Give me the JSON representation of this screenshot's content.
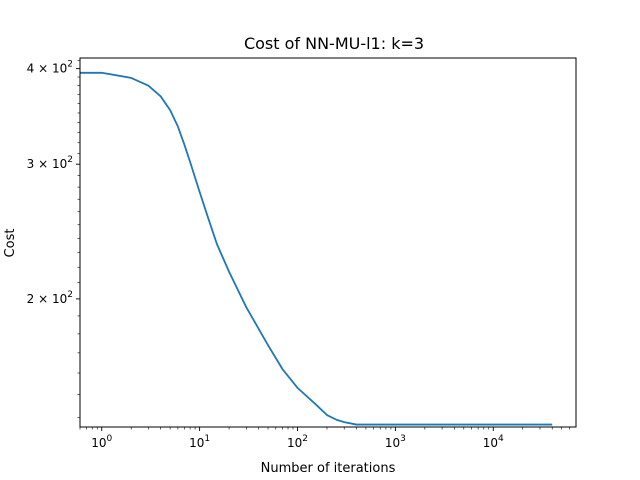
{
  "chart_data": {
    "type": "line",
    "title": "Cost of NN-MU-l1: k=3",
    "xlabel": "Number of iterations",
    "ylabel": "Cost",
    "xscale": "log",
    "yscale": "log",
    "xlim": [
      0.6,
      70000
    ],
    "ylim": [
      136,
      413
    ],
    "grid": false,
    "x_ticks": [
      {
        "value": 1,
        "base": "10",
        "exp": "0"
      },
      {
        "value": 10,
        "base": "10",
        "exp": "1"
      },
      {
        "value": 100,
        "base": "10",
        "exp": "2"
      },
      {
        "value": 1000,
        "base": "10",
        "exp": "3"
      },
      {
        "value": 10000,
        "base": "10",
        "exp": "4"
      }
    ],
    "y_ticks": [
      {
        "value": 200,
        "base": "2 × 10",
        "exp": "2"
      },
      {
        "value": 300,
        "base": "3 × 10",
        "exp": "2"
      },
      {
        "value": 400,
        "base": "4 × 10",
        "exp": "2"
      }
    ],
    "color": "#1f77b4",
    "series": [
      {
        "x": [
          0.6,
          1,
          2,
          3,
          4,
          5,
          6,
          7,
          8,
          10,
          12,
          15,
          20,
          30,
          50,
          70,
          100,
          150,
          200,
          250,
          300,
          400,
          500,
          700,
          1000,
          2000,
          5000,
          10000,
          20000,
          40000
        ],
        "y": [
          395,
          395,
          389,
          380,
          368,
          353,
          336,
          318,
          302,
          276,
          257,
          236,
          217,
          195,
          174,
          162,
          153,
          146,
          141,
          139,
          138,
          137,
          137,
          137,
          137,
          137,
          137,
          137,
          137,
          137
        ]
      }
    ]
  }
}
